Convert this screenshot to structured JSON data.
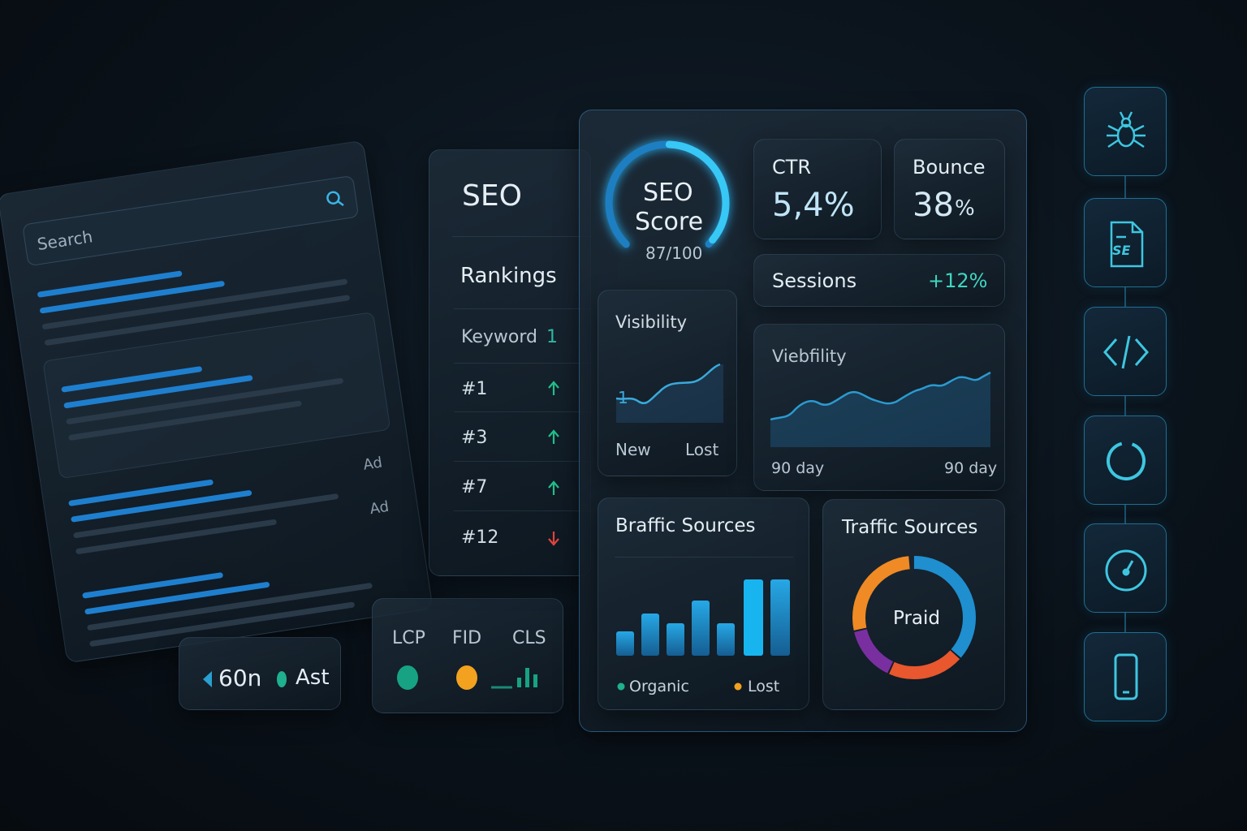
{
  "search": {
    "placeholder": "Search",
    "ads": [
      "Ad",
      "Ad"
    ]
  },
  "footer_card": {
    "left": "60n",
    "right": "Ast"
  },
  "vitals": {
    "labels": [
      "LCP",
      "FID",
      "CLS"
    ]
  },
  "rankings_panel": {
    "title": "SEO",
    "heading": "Rankings",
    "column": "Keyword",
    "column_value": "1",
    "rows": [
      "#1",
      "#3",
      "#7",
      "#12"
    ]
  },
  "score": {
    "title_line1": "SEO",
    "title_line2": "Score",
    "value": "87/100"
  },
  "ctr": {
    "label": "CTR",
    "value": "5,4%"
  },
  "bounce": {
    "label": "Bounce",
    "value": "38",
    "unit": "%"
  },
  "sessions": {
    "label": "Sessions",
    "change": "+12%"
  },
  "visibility": {
    "title": "Visibility",
    "marker": "1",
    "legend": [
      "New",
      "Lost"
    ]
  },
  "viebfility": {
    "title": "Viebfility",
    "axis": [
      "90 day",
      "90 day"
    ]
  },
  "braffic": {
    "title": "Braffic Sources",
    "legend": [
      "Organic",
      "Lost"
    ]
  },
  "traffic": {
    "title": "Traffic Sources",
    "center": "Praid"
  },
  "icons": {
    "file_label": "SE"
  }
}
